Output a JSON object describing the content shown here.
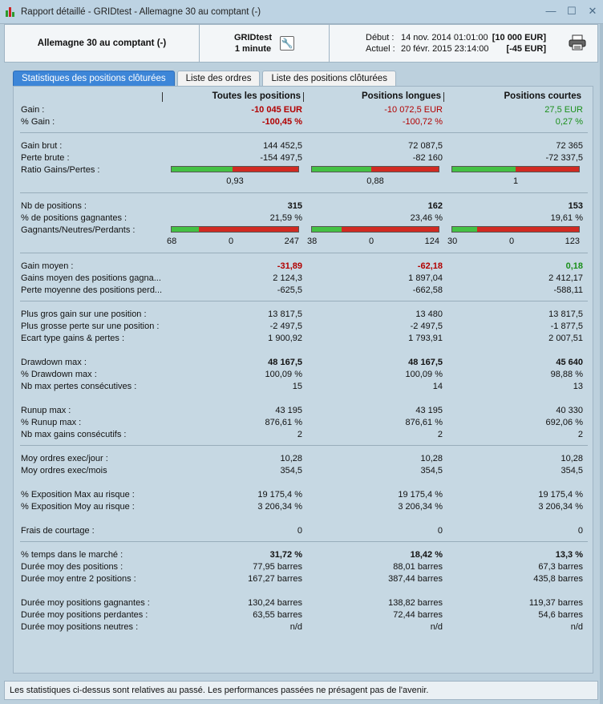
{
  "window": {
    "title": "Rapport détaillé - GRIDtest - Allemagne 30 au comptant (-)"
  },
  "header": {
    "instrument": "Allemagne 30 au comptant (-)",
    "strategy": "GRIDtest",
    "timeframe": "1 minute",
    "debut_label": "Début :",
    "debut_date": "14 nov. 2014 01:01:00",
    "debut_amount": "[10 000 EUR]",
    "actuel_label": "Actuel :",
    "actuel_date": "20 févr. 2015 23:14:00",
    "actuel_amount": "[-45 EUR]"
  },
  "tabs": [
    "Statistiques des positions clôturées",
    "Liste des ordres",
    "Liste des positions clôturées"
  ],
  "columns": [
    "Toutes les positions",
    "Positions longues",
    "Positions courtes"
  ],
  "rows": {
    "gain": {
      "label": "Gain :",
      "v": [
        "-10 045 EUR",
        "-10 072,5 EUR",
        "27,5 EUR"
      ]
    },
    "pct_gain": {
      "label": "% Gain :",
      "v": [
        "-100,45 %",
        "-100,72 %",
        "0,27 %"
      ]
    },
    "gain_brut": {
      "label": "Gain brut :",
      "v": [
        "144 452,5",
        "72 087,5",
        "72 365"
      ]
    },
    "perte_brute": {
      "label": "Perte brute :",
      "v": [
        "-154 497,5",
        "-82 160",
        "-72 337,5"
      ]
    },
    "ratio": {
      "label": "Ratio Gains/Pertes :",
      "v": [
        "0,93",
        "0,88",
        "1"
      ],
      "gain_fraction": [
        0.48,
        0.47,
        0.5
      ]
    },
    "nb_pos": {
      "label": "Nb de positions :",
      "v": [
        "315",
        "162",
        "153"
      ]
    },
    "pct_gagnantes": {
      "label": "% de positions gagnantes :",
      "v": [
        "21,59 %",
        "23,46 %",
        "19,61 %"
      ]
    },
    "gnp": {
      "label": "Gagnants/Neutres/Perdants :",
      "g": [
        "68",
        "38",
        "30"
      ],
      "n": [
        "0",
        "0",
        "0"
      ],
      "p": [
        "247",
        "124",
        "123"
      ],
      "gain_fraction": [
        0.216,
        0.235,
        0.196
      ]
    },
    "gain_moyen": {
      "label": "Gain moyen :",
      "v": [
        "-31,89",
        "-62,18",
        "0,18"
      ]
    },
    "gains_moy_gagn": {
      "label": "Gains moyen des positions gagna...",
      "v": [
        "2 124,3",
        "1 897,04",
        "2 412,17"
      ]
    },
    "perte_moy_perd": {
      "label": "Perte moyenne des positions perd...",
      "v": [
        "-625,5",
        "-662,58",
        "-588,11"
      ]
    },
    "plus_gros_gain": {
      "label": "Plus gros gain sur une position :",
      "v": [
        "13 817,5",
        "13 480",
        "13 817,5"
      ]
    },
    "plus_grosse_perte": {
      "label": "Plus grosse perte sur une position :",
      "v": [
        "-2 497,5",
        "-2 497,5",
        "-1 877,5"
      ]
    },
    "ecart_type": {
      "label": "Ecart type gains & pertes :",
      "v": [
        "1 900,92",
        "1 793,91",
        "2 007,51"
      ]
    },
    "drawdown_max": {
      "label": "Drawdown max :",
      "v": [
        "48 167,5",
        "48 167,5",
        "45 640"
      ]
    },
    "pct_drawdown": {
      "label": "% Drawdown max :",
      "v": [
        "100,09 %",
        "100,09 %",
        "98,88 %"
      ]
    },
    "nb_pertes": {
      "label": "Nb max pertes consécutives :",
      "v": [
        "15",
        "14",
        "13"
      ]
    },
    "runup_max": {
      "label": "Runup max :",
      "v": [
        "43 195",
        "43 195",
        "40 330"
      ]
    },
    "pct_runup": {
      "label": "% Runup max :",
      "v": [
        "876,61 %",
        "876,61 %",
        "692,06 %"
      ]
    },
    "nb_gains": {
      "label": "Nb max gains consécutifs :",
      "v": [
        "2",
        "2",
        "2"
      ]
    },
    "moy_jour": {
      "label": "Moy ordres exec/jour :",
      "v": [
        "10,28",
        "10,28",
        "10,28"
      ]
    },
    "moy_mois": {
      "label": "Moy ordres exec/mois",
      "v": [
        "354,5",
        "354,5",
        "354,5"
      ]
    },
    "expo_max": {
      "label": "% Exposition Max au risque :",
      "v": [
        "19 175,4 %",
        "19 175,4 %",
        "19 175,4 %"
      ]
    },
    "expo_moy": {
      "label": "% Exposition Moy au risque :",
      "v": [
        "3 206,34 %",
        "3 206,34 %",
        "3 206,34 %"
      ]
    },
    "frais": {
      "label": "Frais de courtage :",
      "v": [
        "0",
        "0",
        "0"
      ]
    },
    "temps": {
      "label": "% temps dans le marché :",
      "v": [
        "31,72 %",
        "18,42 %",
        "13,3 %"
      ]
    },
    "duree_pos": {
      "label": "Durée moy des positions :",
      "v": [
        "77,95 barres",
        "88,01 barres",
        "67,3 barres"
      ]
    },
    "duree_entre": {
      "label": "Durée moy entre 2 positions :",
      "v": [
        "167,27 barres",
        "387,44 barres",
        "435,8 barres"
      ]
    },
    "duree_gagn": {
      "label": "Durée moy positions gagnantes :",
      "v": [
        "130,24 barres",
        "138,82 barres",
        "119,37 barres"
      ]
    },
    "duree_perd": {
      "label": "Durée moy positions perdantes :",
      "v": [
        "63,55 barres",
        "72,44 barres",
        "54,6 barres"
      ]
    },
    "duree_neutres": {
      "label": "Durée moy positions neutres :",
      "v": [
        "n/d",
        "n/d",
        "n/d"
      ]
    }
  },
  "footer": "Les statistiques ci-dessus sont relatives au passé. Les performances passées ne présagent pas de l'avenir.",
  "colors": {
    "accent": "#3d86d8",
    "negative": "#b20000",
    "positive": "#1a8f1a",
    "gauge_green": "#44c144",
    "gauge_red": "#d12a22"
  }
}
